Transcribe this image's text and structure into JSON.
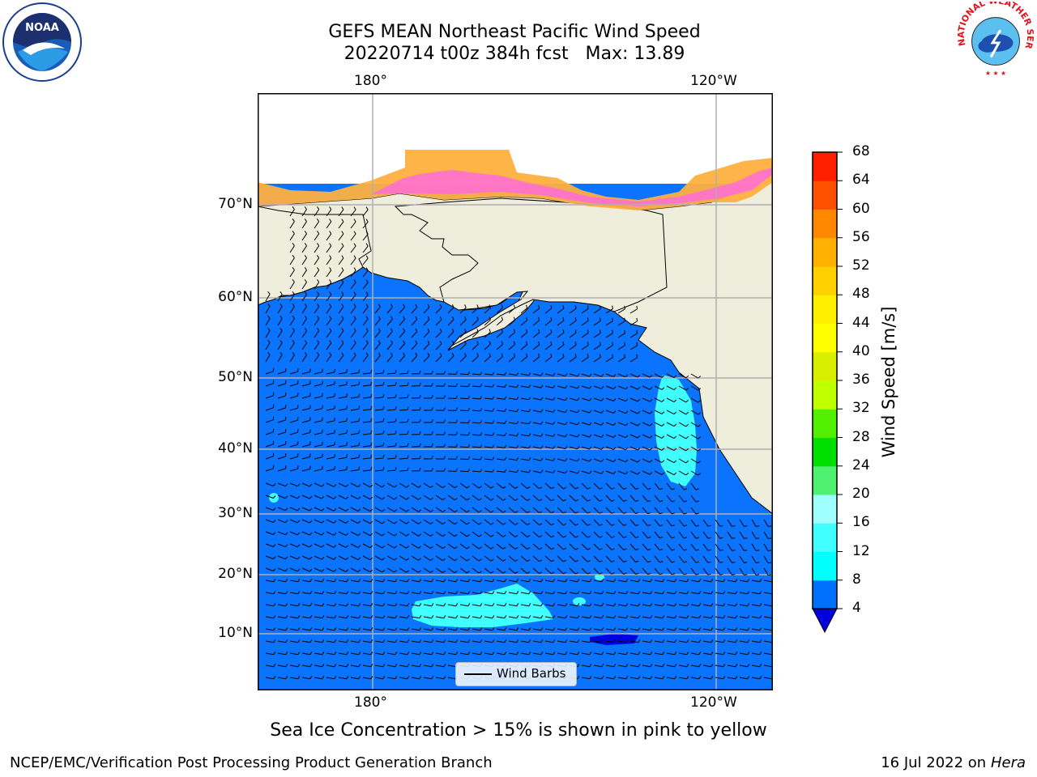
{
  "title": {
    "line1": "GEFS MEAN Northeast Pacific Wind Speed",
    "line2": "20220714 t00z 384h fcst   Max: 13.89"
  },
  "axes": {
    "lon_top": [
      "180°",
      "120°W"
    ],
    "lon_bottom": [
      "180°",
      "120°W"
    ],
    "lat": [
      "70°N",
      "60°N",
      "50°N",
      "40°N",
      "30°N",
      "20°N",
      "10°N"
    ]
  },
  "legend": {
    "label": "Wind Barbs"
  },
  "colorbar": {
    "label": "Wind Speed [m/s]",
    "ticks": [
      "4",
      "8",
      "12",
      "16",
      "20",
      "24",
      "28",
      "32",
      "36",
      "40",
      "44",
      "48",
      "52",
      "56",
      "60",
      "64",
      "68"
    ],
    "colors": [
      "#0070ff",
      "#00ffff",
      "#40ffff",
      "#a0ffff",
      "#50f070",
      "#00e000",
      "#50f000",
      "#c0ff00",
      "#d8f000",
      "#ffff00",
      "#fff000",
      "#ffd000",
      "#ffb000",
      "#ff8800",
      "#ff5000",
      "#ff2000",
      "#ff0000"
    ],
    "extend_min_color": "#0000e0"
  },
  "colors": {
    "ocean": "#0a74ff",
    "land": "#efeddc",
    "ice_pink": "#ff70d0",
    "ice_orange": "#ffb040",
    "cyan": "#40ffff"
  },
  "logos": {
    "left": "NOAA",
    "right": "NATIONAL WEATHER SERVICE"
  },
  "notes": {
    "ice": "Sea Ice Concentration > 15% is shown in pink to yellow"
  },
  "footer": {
    "left": "NCEP/EMC/Verification Post Processing Product Generation Branch",
    "right_date": "16 Jul 2022 on ",
    "right_host": "Hera"
  }
}
